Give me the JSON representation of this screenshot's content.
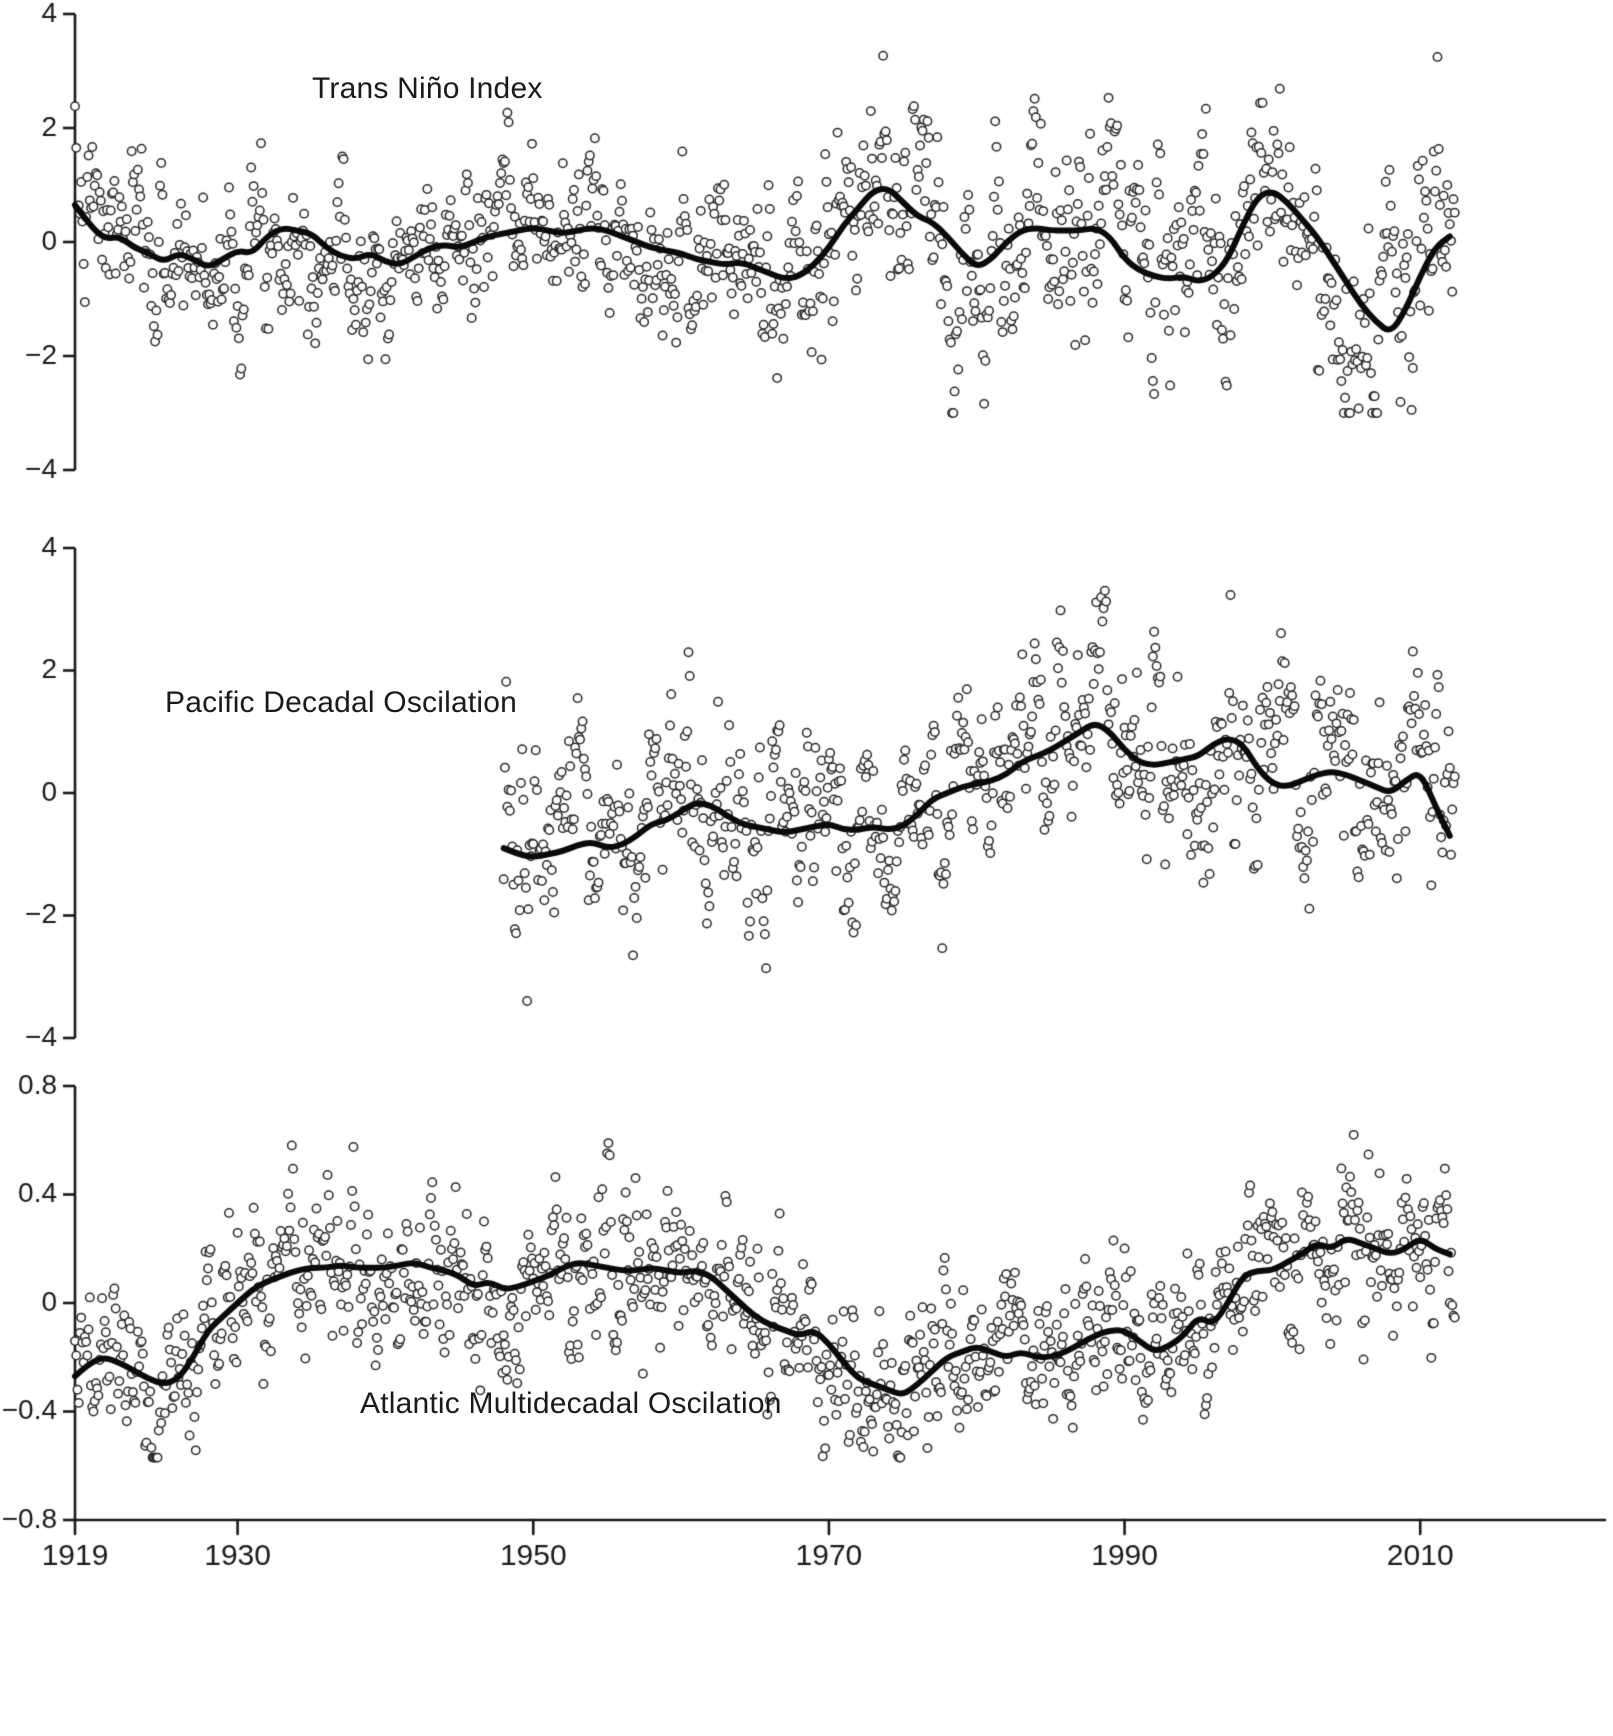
{
  "figure": {
    "background": "#ffffff",
    "ink": "#1a1a1a",
    "marker_stroke": "#2b2b2b",
    "marker_fill": "#ffffff",
    "trend_color": "#0a0a0a"
  },
  "x_axis": {
    "ticks": [
      1919,
      1930,
      1950,
      1970,
      1990,
      2010
    ],
    "range": [
      1919,
      2022.5
    ]
  },
  "chart_data": [
    {
      "type": "scatter",
      "title": "Trans Niño Index",
      "ylim": [
        -4,
        4
      ],
      "yticks": [
        4,
        2,
        0,
        -2,
        -4
      ],
      "x_start": 1919.0,
      "x_end": 2012.4,
      "marker": "open-circle",
      "legend": "monthly values (circles) with multi-year smoothed mean (thick line)",
      "ar1": 0.62,
      "seed": 7,
      "scatter_clip": [
        -3.0,
        3.45
      ],
      "scatter_sd": [
        [
          1919,
          0.8
        ],
        [
          1945,
          0.65
        ],
        [
          1960,
          0.75
        ],
        [
          1975,
          0.9
        ],
        [
          1990,
          1.0
        ],
        [
          2005,
          1.15
        ],
        [
          2012,
          1.1
        ]
      ],
      "trend": [
        [
          1919,
          0.65
        ],
        [
          1920,
          0.3
        ],
        [
          1921,
          0.05
        ],
        [
          1922,
          0.1
        ],
        [
          1923,
          -0.1
        ],
        [
          1924,
          -0.2
        ],
        [
          1925,
          -0.35
        ],
        [
          1926,
          -0.2
        ],
        [
          1927,
          -0.3
        ],
        [
          1928,
          -0.45
        ],
        [
          1929,
          -0.3
        ],
        [
          1930,
          -0.15
        ],
        [
          1931,
          -0.2
        ],
        [
          1932,
          0.1
        ],
        [
          1933,
          0.25
        ],
        [
          1934,
          0.2
        ],
        [
          1935,
          0.15
        ],
        [
          1936,
          -0.1
        ],
        [
          1937,
          -0.25
        ],
        [
          1938,
          -0.3
        ],
        [
          1939,
          -0.2
        ],
        [
          1940,
          -0.35
        ],
        [
          1941,
          -0.4
        ],
        [
          1942,
          -0.25
        ],
        [
          1943,
          -0.1
        ],
        [
          1944,
          -0.05
        ],
        [
          1945,
          -0.1
        ],
        [
          1946,
          0
        ],
        [
          1947,
          0.1
        ],
        [
          1948,
          0.15
        ],
        [
          1949,
          0.2
        ],
        [
          1950,
          0.25
        ],
        [
          1951,
          0.2
        ],
        [
          1952,
          0.15
        ],
        [
          1953,
          0.2
        ],
        [
          1954,
          0.25
        ],
        [
          1955,
          0.2
        ],
        [
          1956,
          0.1
        ],
        [
          1957,
          0
        ],
        [
          1958,
          -0.1
        ],
        [
          1959,
          -0.15
        ],
        [
          1960,
          -0.2
        ],
        [
          1961,
          -0.3
        ],
        [
          1962,
          -0.35
        ],
        [
          1963,
          -0.4
        ],
        [
          1964,
          -0.35
        ],
        [
          1965,
          -0.45
        ],
        [
          1966,
          -0.55
        ],
        [
          1967,
          -0.65
        ],
        [
          1968,
          -0.6
        ],
        [
          1969,
          -0.4
        ],
        [
          1970,
          -0.1
        ],
        [
          1971,
          0.3
        ],
        [
          1972,
          0.6
        ],
        [
          1973,
          0.9
        ],
        [
          1974,
          0.95
        ],
        [
          1975,
          0.7
        ],
        [
          1976,
          0.45
        ],
        [
          1977,
          0.35
        ],
        [
          1978,
          0.1
        ],
        [
          1979,
          -0.2
        ],
        [
          1980,
          -0.45
        ],
        [
          1981,
          -0.3
        ],
        [
          1982,
          0
        ],
        [
          1983,
          0.2
        ],
        [
          1984,
          0.25
        ],
        [
          1985,
          0.2
        ],
        [
          1986,
          0.2
        ],
        [
          1987,
          0.2
        ],
        [
          1988,
          0.25
        ],
        [
          1989,
          0.1
        ],
        [
          1990,
          -0.3
        ],
        [
          1991,
          -0.5
        ],
        [
          1992,
          -0.6
        ],
        [
          1993,
          -0.65
        ],
        [
          1994,
          -0.6
        ],
        [
          1995,
          -0.7
        ],
        [
          1996,
          -0.6
        ],
        [
          1997,
          -0.3
        ],
        [
          1998,
          0.3
        ],
        [
          1999,
          0.8
        ],
        [
          2000,
          0.9
        ],
        [
          2001,
          0.7
        ],
        [
          2002,
          0.4
        ],
        [
          2003,
          0.1
        ],
        [
          2004,
          -0.3
        ],
        [
          2005,
          -0.7
        ],
        [
          2006,
          -1.1
        ],
        [
          2007,
          -1.4
        ],
        [
          2008,
          -1.6
        ],
        [
          2009,
          -1.2
        ],
        [
          2010,
          -0.6
        ],
        [
          2011,
          -0.1
        ],
        [
          2012,
          0.1
        ]
      ]
    },
    {
      "type": "scatter",
      "title": "Pacific Decadal Oscilation",
      "ylim": [
        -4,
        4
      ],
      "yticks": [
        4,
        2,
        0,
        -2,
        -4
      ],
      "x_start": 1948.0,
      "x_end": 2012.4,
      "marker": "open-circle",
      "legend": "monthly values (circles) with multi-year smoothed mean (thick line)",
      "ar1": 0.62,
      "seed": 13,
      "scatter_clip": [
        -3.6,
        3.6
      ],
      "scatter_sd": [
        [
          1948,
          0.95
        ],
        [
          1970,
          0.8
        ],
        [
          1990,
          0.85
        ],
        [
          2012,
          0.9
        ]
      ],
      "trend": [
        [
          1948,
          -0.9
        ],
        [
          1949,
          -1.0
        ],
        [
          1950,
          -1.05
        ],
        [
          1951,
          -1.0
        ],
        [
          1952,
          -0.95
        ],
        [
          1953,
          -0.85
        ],
        [
          1954,
          -0.8
        ],
        [
          1955,
          -0.9
        ],
        [
          1956,
          -0.85
        ],
        [
          1957,
          -0.7
        ],
        [
          1958,
          -0.5
        ],
        [
          1959,
          -0.45
        ],
        [
          1960,
          -0.3
        ],
        [
          1961,
          -0.15
        ],
        [
          1962,
          -0.2
        ],
        [
          1963,
          -0.35
        ],
        [
          1964,
          -0.5
        ],
        [
          1965,
          -0.55
        ],
        [
          1966,
          -0.6
        ],
        [
          1967,
          -0.65
        ],
        [
          1968,
          -0.6
        ],
        [
          1969,
          -0.55
        ],
        [
          1970,
          -0.5
        ],
        [
          1971,
          -0.6
        ],
        [
          1972,
          -0.6
        ],
        [
          1973,
          -0.55
        ],
        [
          1974,
          -0.6
        ],
        [
          1975,
          -0.55
        ],
        [
          1976,
          -0.35
        ],
        [
          1977,
          -0.1
        ],
        [
          1978,
          0
        ],
        [
          1979,
          0.1
        ],
        [
          1980,
          0.15
        ],
        [
          1981,
          0.2
        ],
        [
          1982,
          0.3
        ],
        [
          1983,
          0.5
        ],
        [
          1984,
          0.6
        ],
        [
          1985,
          0.7
        ],
        [
          1986,
          0.85
        ],
        [
          1987,
          1.0
        ],
        [
          1988,
          1.15
        ],
        [
          1989,
          1.0
        ],
        [
          1990,
          0.7
        ],
        [
          1991,
          0.5
        ],
        [
          1992,
          0.45
        ],
        [
          1993,
          0.5
        ],
        [
          1994,
          0.55
        ],
        [
          1995,
          0.6
        ],
        [
          1996,
          0.8
        ],
        [
          1997,
          0.9
        ],
        [
          1998,
          0.8
        ],
        [
          1999,
          0.4
        ],
        [
          2000,
          0.15
        ],
        [
          2001,
          0.1
        ],
        [
          2002,
          0.2
        ],
        [
          2003,
          0.3
        ],
        [
          2004,
          0.35
        ],
        [
          2005,
          0.3
        ],
        [
          2006,
          0.2
        ],
        [
          2007,
          0.1
        ],
        [
          2008,
          0
        ],
        [
          2009,
          0.2
        ],
        [
          2010,
          0.35
        ],
        [
          2011,
          -0.2
        ],
        [
          2012,
          -0.7
        ]
      ]
    },
    {
      "type": "scatter",
      "title": "Atlantic Multidecadal Oscilation",
      "ylim": [
        -0.8,
        0.8
      ],
      "yticks": [
        0.8,
        0.4,
        0,
        -0.4,
        -0.8
      ],
      "x_start": 1919.0,
      "x_end": 2012.4,
      "marker": "open-circle",
      "legend": "monthly values (circles) with multi-year smoothed mean (thick line)",
      "ar1": 0.55,
      "seed": 29,
      "scatter_clip": [
        -0.57,
        0.62
      ],
      "scatter_sd": [
        [
          1919,
          0.15
        ],
        [
          1950,
          0.16
        ],
        [
          1980,
          0.14
        ],
        [
          2012,
          0.16
        ]
      ],
      "trend": [
        [
          1919,
          -0.27
        ],
        [
          1920,
          -0.22
        ],
        [
          1921,
          -0.2
        ],
        [
          1922,
          -0.22
        ],
        [
          1923,
          -0.25
        ],
        [
          1924,
          -0.28
        ],
        [
          1925,
          -0.3
        ],
        [
          1926,
          -0.28
        ],
        [
          1927,
          -0.2
        ],
        [
          1928,
          -0.1
        ],
        [
          1929,
          -0.05
        ],
        [
          1930,
          0
        ],
        [
          1931,
          0.05
        ],
        [
          1932,
          0.08
        ],
        [
          1933,
          0.1
        ],
        [
          1934,
          0.12
        ],
        [
          1935,
          0.13
        ],
        [
          1936,
          0.13
        ],
        [
          1937,
          0.14
        ],
        [
          1938,
          0.13
        ],
        [
          1939,
          0.13
        ],
        [
          1940,
          0.13
        ],
        [
          1941,
          0.14
        ],
        [
          1942,
          0.15
        ],
        [
          1943,
          0.13
        ],
        [
          1944,
          0.12
        ],
        [
          1945,
          0.1
        ],
        [
          1946,
          0.06
        ],
        [
          1947,
          0.08
        ],
        [
          1948,
          0.05
        ],
        [
          1949,
          0.06
        ],
        [
          1950,
          0.08
        ],
        [
          1951,
          0.1
        ],
        [
          1952,
          0.13
        ],
        [
          1953,
          0.15
        ],
        [
          1954,
          0.14
        ],
        [
          1955,
          0.13
        ],
        [
          1956,
          0.12
        ],
        [
          1957,
          0.12
        ],
        [
          1958,
          0.13
        ],
        [
          1959,
          0.12
        ],
        [
          1960,
          0.11
        ],
        [
          1961,
          0.12
        ],
        [
          1962,
          0.1
        ],
        [
          1963,
          0.05
        ],
        [
          1964,
          0
        ],
        [
          1965,
          -0.05
        ],
        [
          1966,
          -0.08
        ],
        [
          1967,
          -0.1
        ],
        [
          1968,
          -0.12
        ],
        [
          1969,
          -0.1
        ],
        [
          1970,
          -0.15
        ],
        [
          1971,
          -0.22
        ],
        [
          1972,
          -0.28
        ],
        [
          1973,
          -0.3
        ],
        [
          1974,
          -0.32
        ],
        [
          1975,
          -0.34
        ],
        [
          1976,
          -0.3
        ],
        [
          1977,
          -0.25
        ],
        [
          1978,
          -0.2
        ],
        [
          1979,
          -0.18
        ],
        [
          1980,
          -0.16
        ],
        [
          1981,
          -0.18
        ],
        [
          1982,
          -0.2
        ],
        [
          1983,
          -0.18
        ],
        [
          1984,
          -0.2
        ],
        [
          1985,
          -0.2
        ],
        [
          1986,
          -0.18
        ],
        [
          1987,
          -0.15
        ],
        [
          1988,
          -0.12
        ],
        [
          1989,
          -0.1
        ],
        [
          1990,
          -0.1
        ],
        [
          1991,
          -0.14
        ],
        [
          1992,
          -0.18
        ],
        [
          1993,
          -0.16
        ],
        [
          1994,
          -0.12
        ],
        [
          1995,
          -0.05
        ],
        [
          1996,
          -0.08
        ],
        [
          1997,
          0
        ],
        [
          1998,
          0.1
        ],
        [
          1999,
          0.12
        ],
        [
          2000,
          0.12
        ],
        [
          2001,
          0.15
        ],
        [
          2002,
          0.18
        ],
        [
          2003,
          0.22
        ],
        [
          2004,
          0.2
        ],
        [
          2005,
          0.24
        ],
        [
          2006,
          0.22
        ],
        [
          2007,
          0.2
        ],
        [
          2008,
          0.18
        ],
        [
          2009,
          0.2
        ],
        [
          2010,
          0.24
        ],
        [
          2011,
          0.2
        ],
        [
          2012,
          0.18
        ]
      ]
    }
  ]
}
